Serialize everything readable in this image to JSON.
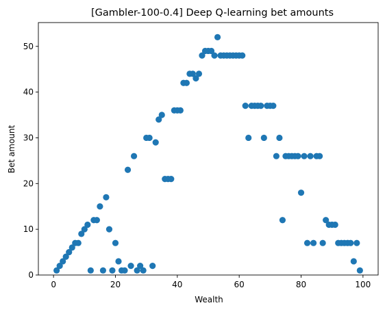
{
  "chart_data": {
    "type": "scatter",
    "title": "[Gambler-100-0.4] Deep Q-learning bet amounts",
    "xlabel": "Wealth",
    "ylabel": "Bet amount",
    "xlim": [
      -4.9,
      104.9
    ],
    "ylim": [
      0,
      55.2
    ],
    "xticks": [
      0,
      20,
      40,
      60,
      80,
      100
    ],
    "yticks": [
      0,
      10,
      20,
      30,
      40,
      50
    ],
    "xtick_labels": [
      "0",
      "20",
      "40",
      "60",
      "80",
      "100"
    ],
    "ytick_labels": [
      "0",
      "10",
      "20",
      "30",
      "40",
      "50"
    ],
    "grid": false,
    "legend": "none",
    "marker_color": "#1f77b4",
    "x": [
      1,
      2,
      3,
      4,
      5,
      6,
      7,
      8,
      9,
      10,
      11,
      12,
      13,
      14,
      15,
      16,
      17,
      18,
      19,
      20,
      21,
      22,
      23,
      24,
      25,
      26,
      27,
      28,
      29,
      30,
      31,
      32,
      33,
      34,
      35,
      36,
      37,
      38,
      39,
      40,
      41,
      42,
      43,
      44,
      45,
      46,
      47,
      48,
      49,
      50,
      51,
      52,
      53,
      54,
      55,
      56,
      57,
      58,
      59,
      60,
      61,
      62,
      63,
      64,
      65,
      66,
      67,
      68,
      69,
      70,
      71,
      72,
      73,
      74,
      75,
      76,
      77,
      78,
      79,
      80,
      81,
      82,
      83,
      84,
      85,
      86,
      87,
      88,
      89,
      90,
      91,
      92,
      93,
      94,
      95,
      96,
      97,
      98,
      99
    ],
    "y": [
      1,
      2,
      3,
      4,
      5,
      6,
      7,
      7,
      9,
      10,
      11,
      1,
      12,
      12,
      15,
      1,
      17,
      10,
      1,
      7,
      3,
      1,
      1,
      23,
      2,
      26,
      1,
      2,
      1,
      30,
      30,
      2,
      29,
      34,
      35,
      21,
      21,
      21,
      36,
      36,
      36,
      42,
      42,
      44,
      44,
      43,
      44,
      48,
      49,
      49,
      49,
      48,
      52,
      48,
      48,
      48,
      48,
      48,
      48,
      48,
      48,
      37,
      30,
      37,
      37,
      37,
      37,
      30,
      37,
      37,
      37,
      26,
      30,
      12,
      26,
      26,
      26,
      26,
      26,
      18,
      26,
      7,
      26,
      7,
      26,
      26,
      7,
      12,
      11,
      11,
      11,
      7,
      7,
      7,
      7,
      7,
      3,
      7,
      1
    ]
  }
}
